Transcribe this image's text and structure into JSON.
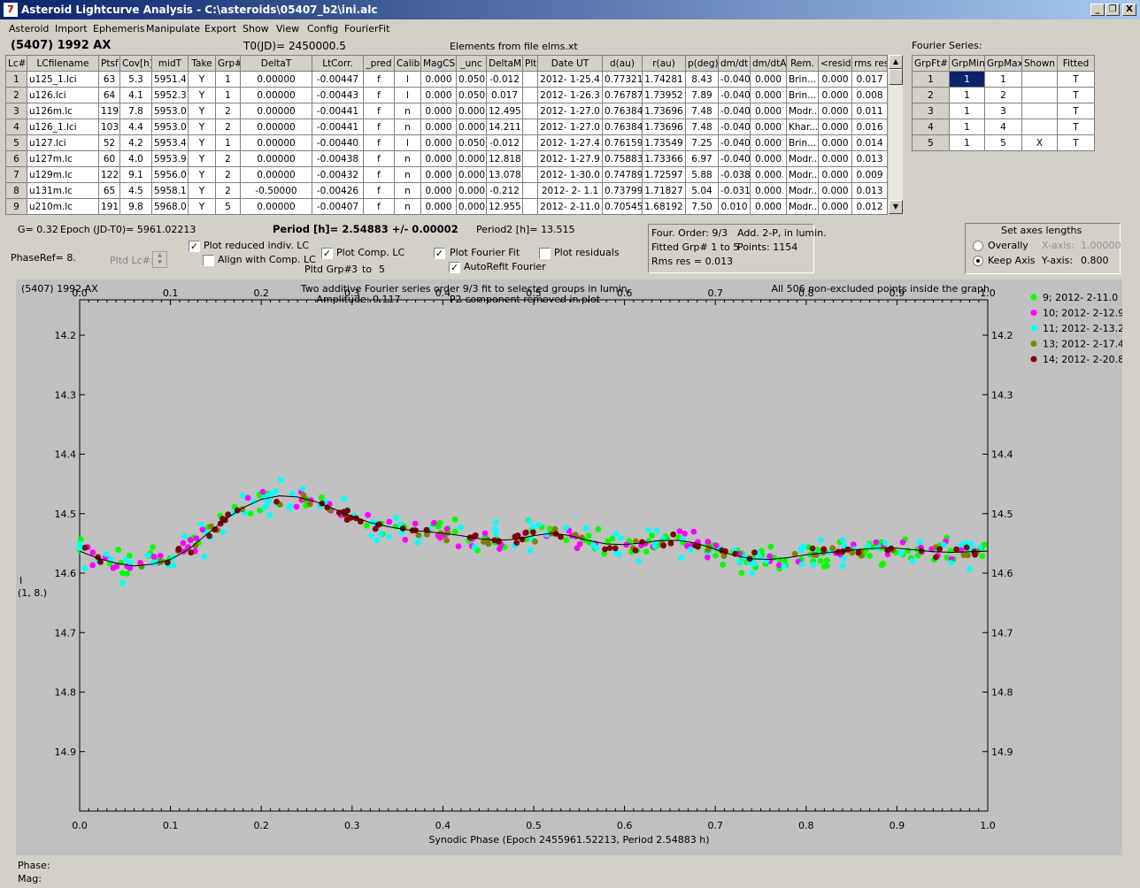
{
  "window": {
    "title": "Asteroid Lightcurve Analysis - C:\\asteroids\\05407_b2\\ini.alc",
    "icon": "app-icon",
    "min": "_",
    "max": "❐",
    "close": "X"
  },
  "menu": [
    "Asteroid",
    "Import",
    "Ephemeris",
    "Manipulate",
    "Export",
    "Show",
    "View",
    "Config",
    "FourierFit"
  ],
  "header": {
    "asteroid": "(5407) 1992 AX",
    "t0": "T0(JD)= 2450000.5",
    "elements": "Elements from file elms.xt",
    "fourier_title": "Fourier Series:"
  },
  "lc_table": {
    "columns": [
      "Lc#",
      "LCfilename",
      "Ptsf",
      "Cov[h]",
      "midT",
      "Take",
      "Grp#",
      "DeltaT",
      "LtCorr.",
      "_pred",
      "Calib",
      "MagCS",
      "_unc",
      "DeltaM",
      "Plt",
      "Date UT",
      "d(au)",
      "r(au)",
      "p(deg)",
      "dm/dt",
      "dm/dtA",
      "Rem.",
      "<resid>",
      "rms res"
    ],
    "rows": [
      [
        "1",
        "u125_1.lci",
        "63",
        "5.3",
        "5951.4",
        "Y",
        "1",
        "0.00000",
        "-0.00447",
        "f",
        "l",
        "0.000",
        "0.050",
        "-0.012",
        "",
        "2012- 1-25.4",
        "0.77321",
        "1.74281",
        "8.43",
        "-0.040",
        "0.000",
        "Brin...",
        "0.000",
        "0.017"
      ],
      [
        "2",
        "u126.lci",
        "64",
        "4.1",
        "5952.3",
        "Y",
        "1",
        "0.00000",
        "-0.00443",
        "f",
        "l",
        "0.000",
        "0.050",
        "0.017",
        "",
        "2012- 1-26.3",
        "0.76787",
        "1.73952",
        "7.89",
        "-0.040",
        "0.000",
        "Brin...",
        "0.000",
        "0.008"
      ],
      [
        "3",
        "u126m.lc",
        "119",
        "7.8",
        "5953.0",
        "Y",
        "2",
        "0.00000",
        "-0.00441",
        "f",
        "n",
        "0.000",
        "0.000",
        "12.495",
        "",
        "2012- 1-27.0",
        "0.76384",
        "1.73696",
        "7.48",
        "-0.040",
        "0.000",
        "Modr...",
        "0.000",
        "0.011"
      ],
      [
        "4",
        "u126_1.lci",
        "103",
        "4.4",
        "5953.0",
        "Y",
        "2",
        "0.00000",
        "-0.00441",
        "f",
        "n",
        "0.000",
        "0.000",
        "14.211",
        "",
        "2012- 1-27.0",
        "0.76384",
        "1.73696",
        "7.48",
        "-0.040",
        "0.000",
        "Khar...",
        "0.000",
        "0.016"
      ],
      [
        "5",
        "u127.lci",
        "52",
        "4.2",
        "5953.4",
        "Y",
        "1",
        "0.00000",
        "-0.00440",
        "f",
        "l",
        "0.000",
        "0.050",
        "-0.012",
        "",
        "2012- 1-27.4",
        "0.76159",
        "1.73549",
        "7.25",
        "-0.040",
        "0.000",
        "Brin...",
        "0.000",
        "0.014"
      ],
      [
        "6",
        "u127m.lc",
        "60",
        "4.0",
        "5953.9",
        "Y",
        "2",
        "0.00000",
        "-0.00438",
        "f",
        "n",
        "0.000",
        "0.000",
        "12.818",
        "",
        "2012- 1-27.9",
        "0.75883",
        "1.73366",
        "6.97",
        "-0.040",
        "0.000",
        "Modr...",
        "0.000",
        "0.013"
      ],
      [
        "7",
        "u129m.lc",
        "122",
        "9.1",
        "5956.0",
        "Y",
        "2",
        "0.00000",
        "-0.00432",
        "f",
        "n",
        "0.000",
        "0.000",
        "13.078",
        "",
        "2012- 1-30.0",
        "0.74789",
        "1.72597",
        "5.88",
        "-0.038",
        "0.000",
        "Modr...",
        "0.000",
        "0.009"
      ],
      [
        "8",
        "u131m.lc",
        "65",
        "4.5",
        "5958.1",
        "Y",
        "2",
        "-0.50000",
        "-0.00426",
        "f",
        "n",
        "0.000",
        "0.000",
        "-0.212",
        "",
        "2012- 2- 1.1",
        "0.73799",
        "1.71827",
        "5.04",
        "-0.031",
        "0.000",
        "Modr...",
        "0.000",
        "0.013"
      ],
      [
        "9",
        "u210m.lc",
        "191",
        "9.8",
        "5968.0",
        "Y",
        "5",
        "0.00000",
        "-0.00407",
        "f",
        "n",
        "0.000",
        "0.000",
        "12.955",
        "",
        "2012- 2-11.0",
        "0.70545",
        "1.68192",
        "7.50",
        "0.010",
        "0.000",
        "Modr...",
        "0.000",
        "0.012"
      ]
    ]
  },
  "fourier_table": {
    "columns": [
      "GrpFt#",
      "GrpMin",
      "GrpMax",
      "Shown",
      "Fitted"
    ],
    "rows": [
      [
        "1",
        "1",
        "1",
        "",
        "T"
      ],
      [
        "2",
        "1",
        "2",
        "",
        "T"
      ],
      [
        "3",
        "1",
        "3",
        "",
        "T"
      ],
      [
        "4",
        "1",
        "4",
        "",
        "T"
      ],
      [
        "5",
        "1",
        "5",
        "X",
        "T"
      ]
    ]
  },
  "info": {
    "g": "G= 0.32",
    "epoch": "Epoch (JD-T0)= 5961.02213",
    "period": "Period [h]= 2.54883 +/- 0.00002",
    "period2": "Period2 [h]= 13.515",
    "phaseref": "PhaseRef= 8.",
    "pltd_lc": "Pltd Lc#:",
    "pltd_grp": "Pltd Grp#",
    "grp_from": "3",
    "grp_to_word": "to",
    "grp_to": "5"
  },
  "checks": [
    {
      "label": "Plot reduced indiv. LC",
      "checked": true
    },
    {
      "label": "Align with Comp. LC",
      "checked": false
    },
    {
      "label": "Plot Comp. LC",
      "checked": true
    },
    {
      "label": "Plot Fourier Fit",
      "checked": true
    },
    {
      "label": "Plot residuals",
      "checked": false
    },
    {
      "label": "AutoRefit Fourier",
      "checked": true
    }
  ],
  "fit_info": {
    "order": "Four. Order:  9/3",
    "add": "Add. 2-P, in lumin.",
    "fitted": "Fitted Grp# 1 to 5",
    "points": "Points: 1154",
    "rms": "Rms res     = 0.013"
  },
  "axes": {
    "title": "Set axes lengths",
    "overally": "Overally",
    "keep": "Keep Axis",
    "xlabel": "X-axis:",
    "xval": "1.00000",
    "ylabel": "Y-axis:",
    "yval": "0.800"
  },
  "chart_data": {
    "type": "scatter",
    "title": "Two additive Fourier series order 9/3 fit to selected groups in lumin.",
    "subtitle1": "Amplitude: 0.117",
    "subtitle2": "P2-component removed in plot",
    "corner_left": "(5407) 1992 AX",
    "corner_right": "All 506 non-excluded points inside the graph",
    "xlabel": "Synodic Phase (Epoch 2455961.52213, Period 2.54883 h)",
    "ylabel1": "I",
    "ylabel2": "(1, 8.)",
    "xlim": [
      0,
      1
    ],
    "ylim": [
      14.2,
      15.0
    ],
    "y_inverted": true,
    "xticks": [
      "0.0",
      "0.1",
      "0.2",
      "0.3",
      "0.4",
      "0.5",
      "0.6",
      "0.7",
      "0.8",
      "0.9",
      "1.0"
    ],
    "yticks": [
      "14.2",
      "14.3",
      "14.4",
      "14.5",
      "14.6",
      "14.7",
      "14.8",
      "14.9"
    ],
    "grid": false,
    "legend_position": "right",
    "series": [
      {
        "name": "9; 2012- 2-11.0",
        "color": "#00ff00"
      },
      {
        "name": "10; 2012- 2-12.9",
        "color": "#ff00ff"
      },
      {
        "name": "11; 2012- 2-13.2",
        "color": "#00ffff"
      },
      {
        "name": "13; 2012- 2-17.4",
        "color": "#808000"
      },
      {
        "name": "14; 2012- 2-20.8",
        "color": "#800000"
      }
    ],
    "fit_curve": {
      "x": [
        0.0,
        0.02,
        0.04,
        0.06,
        0.08,
        0.1,
        0.12,
        0.14,
        0.16,
        0.18,
        0.2,
        0.22,
        0.24,
        0.26,
        0.28,
        0.3,
        0.32,
        0.34,
        0.36,
        0.38,
        0.4,
        0.42,
        0.44,
        0.46,
        0.48,
        0.5,
        0.52,
        0.54,
        0.56,
        0.58,
        0.6,
        0.62,
        0.64,
        0.66,
        0.68,
        0.7,
        0.72,
        0.74,
        0.76,
        0.78,
        0.8,
        0.82,
        0.84,
        0.86,
        0.88,
        0.9,
        0.92,
        0.94,
        0.96,
        0.98,
        1.0
      ],
      "y": [
        14.563,
        14.575,
        14.583,
        14.588,
        14.585,
        14.577,
        14.56,
        14.535,
        14.51,
        14.49,
        14.476,
        14.47,
        14.472,
        14.48,
        14.492,
        14.505,
        14.515,
        14.522,
        14.527,
        14.53,
        14.533,
        14.537,
        14.542,
        14.545,
        14.543,
        14.537,
        14.533,
        14.537,
        14.545,
        14.551,
        14.552,
        14.549,
        14.545,
        14.545,
        14.55,
        14.56,
        14.57,
        14.576,
        14.577,
        14.574,
        14.569,
        14.566,
        14.563,
        14.56,
        14.558,
        14.558,
        14.561,
        14.564,
        14.565,
        14.564,
        14.563
      ]
    }
  },
  "status": {
    "phase": "Phase:",
    "mag": "Mag:"
  }
}
